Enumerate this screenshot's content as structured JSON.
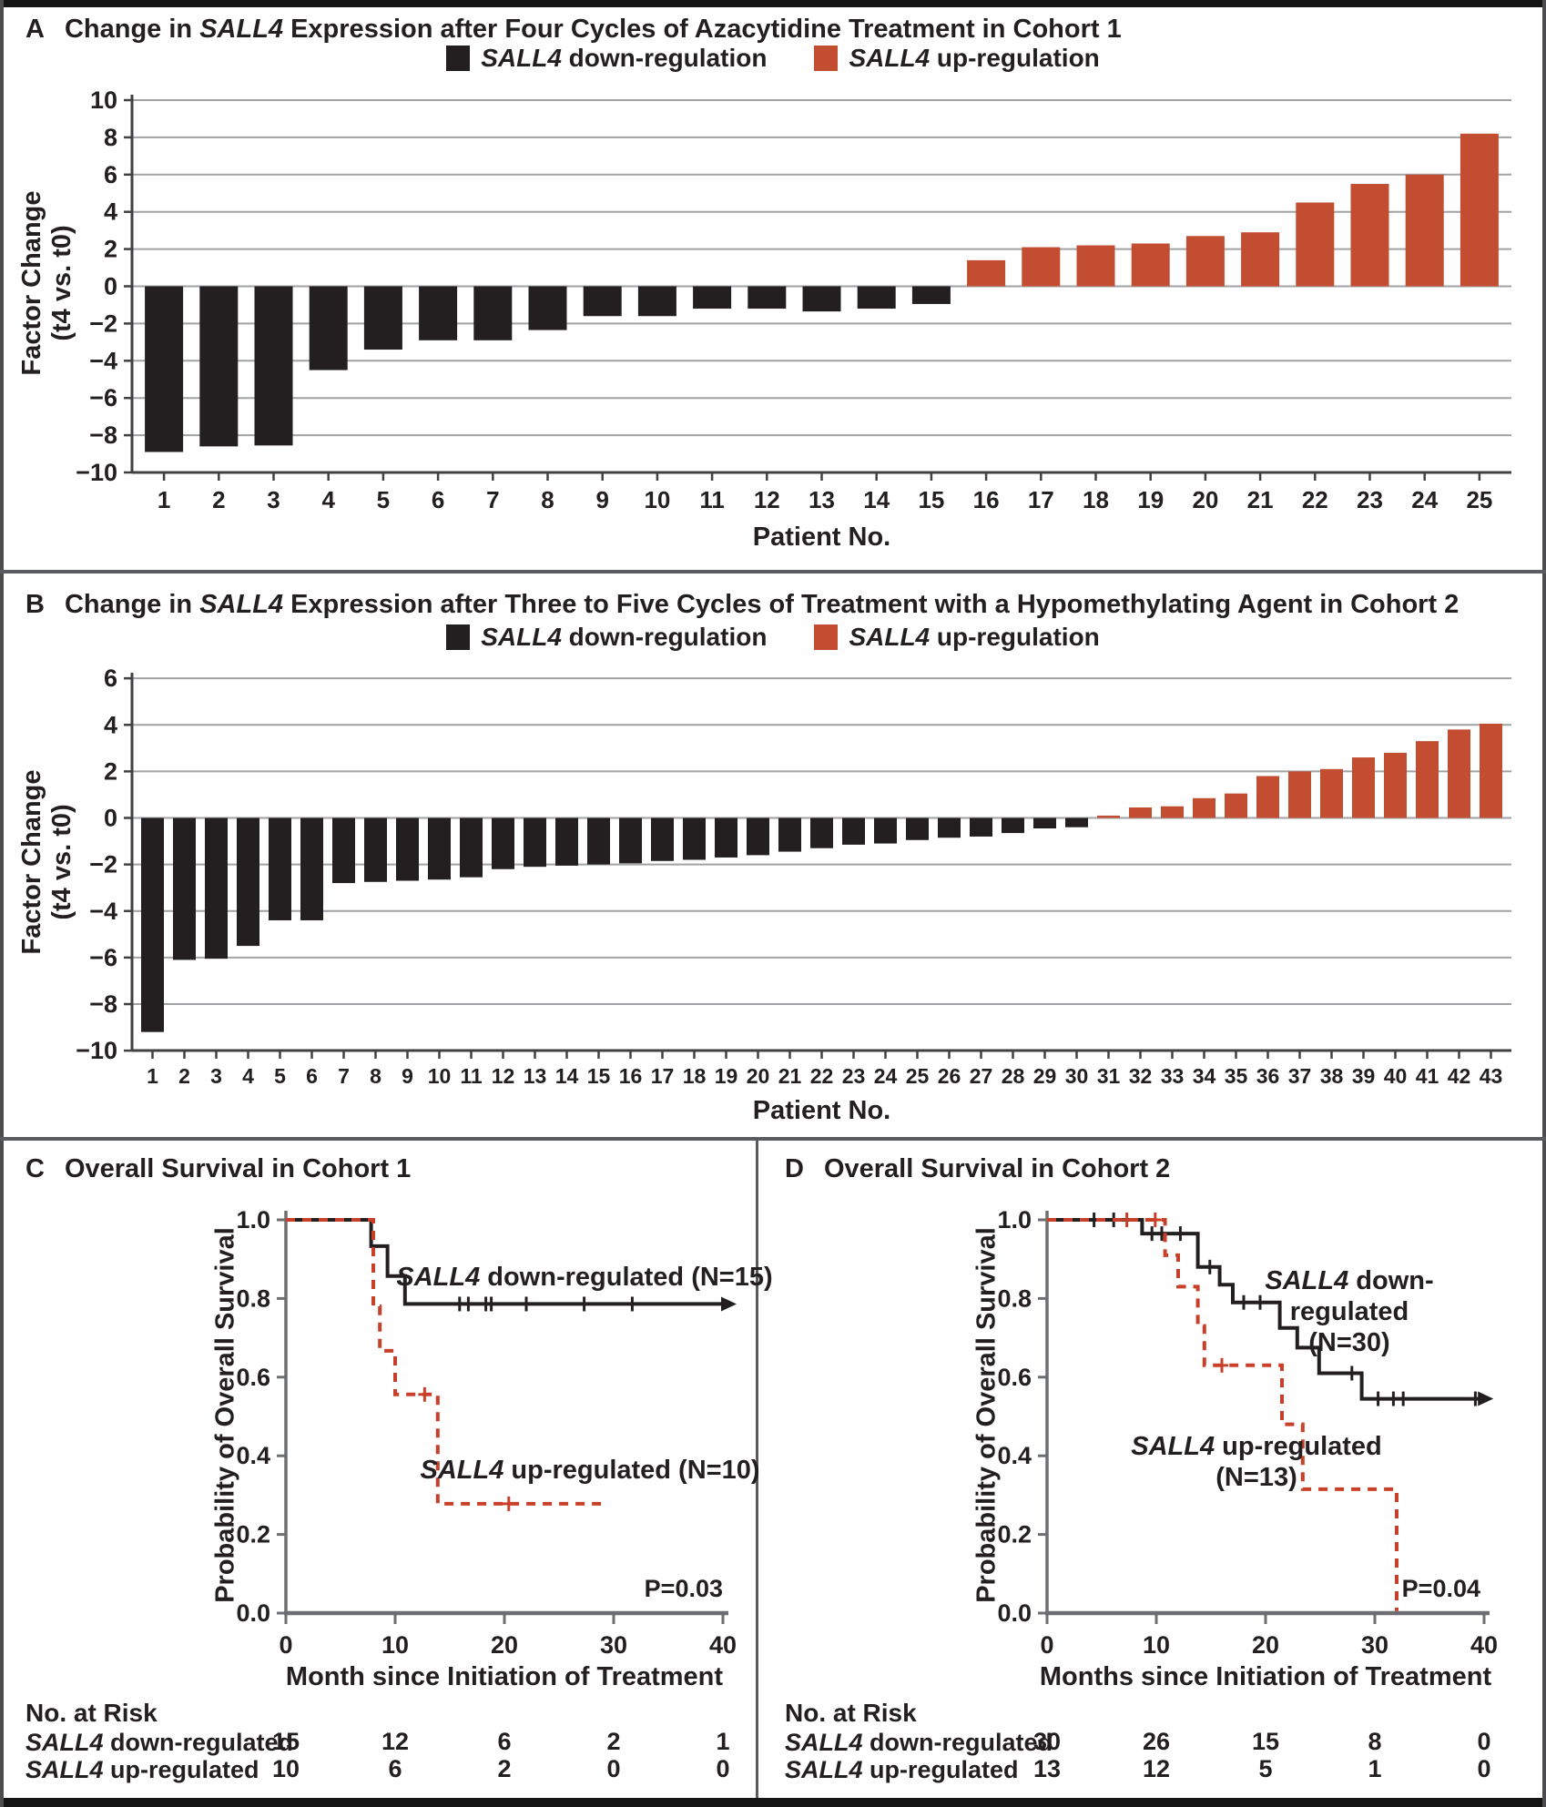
{
  "chart_data": [
    {
      "type": "bar",
      "panel_letter": "A",
      "title_pre": "Change in ",
      "title_italic": "SALL4",
      "title_post": " Expression after Four Cycles of Azacytidine Treatment in Cohort 1",
      "legend": [
        {
          "italic": "SALL4",
          "rest": " down-regulation",
          "color": "#231f20"
        },
        {
          "italic": "SALL4",
          "rest": " up-regulation",
          "color": "#c24d31"
        }
      ],
      "xlabel": "Patient No.",
      "ylabel_line1": "Factor Change",
      "ylabel_line2": "(t4 vs. t0)",
      "ylim": [
        -10,
        10
      ],
      "yticks": [
        10,
        8,
        6,
        4,
        2,
        0,
        -2,
        -4,
        -6,
        -8,
        -10
      ],
      "categories": [
        1,
        2,
        3,
        4,
        5,
        6,
        7,
        8,
        9,
        10,
        11,
        12,
        13,
        14,
        15,
        16,
        17,
        18,
        19,
        20,
        21,
        22,
        23,
        24,
        25
      ],
      "values": [
        -8.9,
        -8.6,
        -8.55,
        -4.5,
        -3.4,
        -2.9,
        -2.9,
        -2.35,
        -1.6,
        -1.6,
        -1.2,
        -1.2,
        -1.35,
        -1.2,
        -0.95,
        1.4,
        2.1,
        2.2,
        2.3,
        2.7,
        2.9,
        4.5,
        5.5,
        6.0,
        8.2
      ],
      "colors": {
        "down": "#231f20",
        "up": "#c24d31"
      }
    },
    {
      "type": "bar",
      "panel_letter": "B",
      "title_pre": "Change in ",
      "title_italic": "SALL4",
      "title_post": " Expression after Three to Five Cycles of Treatment with a Hypomethylating Agent in Cohort 2",
      "legend": [
        {
          "italic": "SALL4",
          "rest": " down-regulation",
          "color": "#231f20"
        },
        {
          "italic": "SALL4",
          "rest": " up-regulation",
          "color": "#c24d31"
        }
      ],
      "xlabel": "Patient No.",
      "ylabel_line1": "Factor Change",
      "ylabel_line2": "(t4 vs. t0)",
      "ylim": [
        -10,
        6
      ],
      "yticks": [
        6,
        4,
        2,
        0,
        -2,
        -4,
        -6,
        -8,
        -10
      ],
      "categories": [
        1,
        2,
        3,
        4,
        5,
        6,
        7,
        8,
        9,
        10,
        11,
        12,
        13,
        14,
        15,
        16,
        17,
        18,
        19,
        20,
        21,
        22,
        23,
        24,
        25,
        26,
        27,
        28,
        29,
        30,
        31,
        32,
        33,
        34,
        35,
        36,
        37,
        38,
        39,
        40,
        41,
        42,
        43
      ],
      "values": [
        -9.2,
        -6.1,
        -6.05,
        -5.5,
        -4.4,
        -4.4,
        -2.8,
        -2.75,
        -2.7,
        -2.65,
        -2.55,
        -2.2,
        -2.1,
        -2.05,
        -2.0,
        -1.95,
        -1.85,
        -1.8,
        -1.7,
        -1.6,
        -1.45,
        -1.3,
        -1.15,
        -1.1,
        -0.95,
        -0.85,
        -0.8,
        -0.65,
        -0.45,
        -0.4,
        0.1,
        0.45,
        0.5,
        0.85,
        1.05,
        1.8,
        2.0,
        2.1,
        2.6,
        2.8,
        3.3,
        3.8,
        4.05
      ],
      "colors": {
        "down": "#231f20",
        "up": "#c24d31"
      }
    },
    {
      "type": "line",
      "panel_letter": "C",
      "title": "Overall Survival in Cohort 1",
      "ylabel": "Probability of Overall Survival",
      "xlabel": "Month since Initiation of Treatment",
      "pvalue": "P=0.03",
      "xlim": [
        0,
        40
      ],
      "xticks": [
        0,
        10,
        20,
        30,
        40
      ],
      "ylim": [
        0.0,
        1.0
      ],
      "yticks": [
        1.0,
        0.8,
        0.6,
        0.4,
        0.2,
        0.0
      ],
      "series": [
        {
          "label_line1_italic": "SALL4",
          "label_line1_rest": " down-regulated (N=15)",
          "label_line2": "",
          "color": "#231f20",
          "style": "solid",
          "arrow_end": true,
          "steps": [
            [
              0,
              1
            ],
            [
              7.8,
              1
            ],
            [
              7.8,
              0.933
            ],
            [
              9.3,
              0.933
            ],
            [
              9.3,
              0.857
            ],
            [
              10.9,
              0.857
            ],
            [
              10.9,
              0.786
            ],
            [
              40,
              0.786
            ]
          ],
          "censors": [
            [
              15.9,
              0.786
            ],
            [
              16.7,
              0.786
            ],
            [
              18.3,
              0.786
            ],
            [
              18.8,
              0.786
            ],
            [
              22,
              0.786
            ],
            [
              27.3,
              0.786
            ],
            [
              31.7,
              0.786
            ]
          ]
        },
        {
          "label_line1_italic": "SALL4",
          "label_line1_rest": " up-regulated (N=10)",
          "label_line2": "",
          "color": "#c9402a",
          "style": "dashed",
          "arrow_end": false,
          "steps": [
            [
              0,
              1
            ],
            [
              8,
              1
            ],
            [
              8,
              0.78
            ],
            [
              8.6,
              0.78
            ],
            [
              8.6,
              0.667
            ],
            [
              10,
              0.667
            ],
            [
              10,
              0.556
            ],
            [
              13.9,
              0.556
            ],
            [
              13.9,
              0.278
            ],
            [
              28.9,
              0.278
            ]
          ],
          "censors": [
            [
              12.7,
              0.556
            ],
            [
              20.4,
              0.278
            ]
          ]
        }
      ],
      "risk_table": {
        "title": "No. at Risk",
        "rows": [
          {
            "label_italic": "SALL4",
            "label_rest": " down-regulated",
            "counts": [
              "15",
              "12",
              "6",
              "2",
              "1"
            ]
          },
          {
            "label_italic": "SALL4",
            "label_rest": " up-regulated",
            "counts": [
              "10",
              "6",
              "2",
              "0",
              "0"
            ]
          }
        ]
      }
    },
    {
      "type": "line",
      "panel_letter": "D",
      "title": "Overall Survival in Cohort 2",
      "ylabel": "Probability of Overall Survival",
      "xlabel": "Months since Initiation of Treatment",
      "pvalue": "P=0.04",
      "xlim": [
        0,
        40
      ],
      "xticks": [
        0,
        10,
        20,
        30,
        40
      ],
      "ylim": [
        0.0,
        1.0
      ],
      "yticks": [
        1.0,
        0.8,
        0.6,
        0.4,
        0.2,
        0.0
      ],
      "series": [
        {
          "label_line1_italic": "SALL4",
          "label_line1_rest": " down-regulated",
          "label_line2": "(N=30)",
          "color": "#231f20",
          "style": "solid",
          "arrow_end": true,
          "steps": [
            [
              0,
              1
            ],
            [
              8.7,
              1
            ],
            [
              8.7,
              0.965
            ],
            [
              13.8,
              0.965
            ],
            [
              13.8,
              0.88
            ],
            [
              15.8,
              0.88
            ],
            [
              15.8,
              0.835
            ],
            [
              17,
              0.835
            ],
            [
              17,
              0.79
            ],
            [
              21.3,
              0.79
            ],
            [
              21.3,
              0.725
            ],
            [
              22.9,
              0.725
            ],
            [
              22.9,
              0.675
            ],
            [
              24.9,
              0.675
            ],
            [
              24.9,
              0.61
            ],
            [
              28.8,
              0.61
            ],
            [
              28.8,
              0.545
            ],
            [
              39.6,
              0.545
            ]
          ],
          "censors": [
            [
              4.3,
              1
            ],
            [
              6.1,
              1
            ],
            [
              9.6,
              0.965
            ],
            [
              10.5,
              0.965
            ],
            [
              12.2,
              0.965
            ],
            [
              14.9,
              0.88
            ],
            [
              18,
              0.79
            ],
            [
              19.5,
              0.79
            ],
            [
              27.9,
              0.61
            ],
            [
              30.3,
              0.545
            ],
            [
              31.7,
              0.545
            ],
            [
              32.6,
              0.545
            ],
            [
              39.2,
              0.545
            ]
          ]
        },
        {
          "label_line1_italic": "SALL4",
          "label_line1_rest": " up-regulated",
          "label_line2": "(N=13)",
          "color": "#c9402a",
          "style": "dashed",
          "arrow_end": false,
          "steps": [
            [
              0,
              1
            ],
            [
              10.8,
              1
            ],
            [
              10.8,
              0.91
            ],
            [
              12,
              0.91
            ],
            [
              12,
              0.83
            ],
            [
              13.8,
              0.83
            ],
            [
              13.8,
              0.73
            ],
            [
              14.4,
              0.73
            ],
            [
              14.4,
              0.63
            ],
            [
              21.5,
              0.63
            ],
            [
              21.5,
              0.48
            ],
            [
              23.4,
              0.48
            ],
            [
              23.4,
              0.315
            ],
            [
              32,
              0.315
            ],
            [
              32,
              0.005
            ]
          ],
          "censors": [
            [
              7.3,
              1
            ],
            [
              9.9,
              1
            ],
            [
              16,
              0.63
            ]
          ]
        }
      ],
      "risk_table": {
        "title": "No. at Risk",
        "rows": [
          {
            "label_italic": "SALL4",
            "label_rest": " down-regulated",
            "counts": [
              "30",
              "26",
              "15",
              "8",
              "0"
            ]
          },
          {
            "label_italic": "SALL4",
            "label_rest": " up-regulated",
            "counts": [
              "13",
              "12",
              "5",
              "1",
              "0"
            ]
          }
        ]
      }
    }
  ]
}
